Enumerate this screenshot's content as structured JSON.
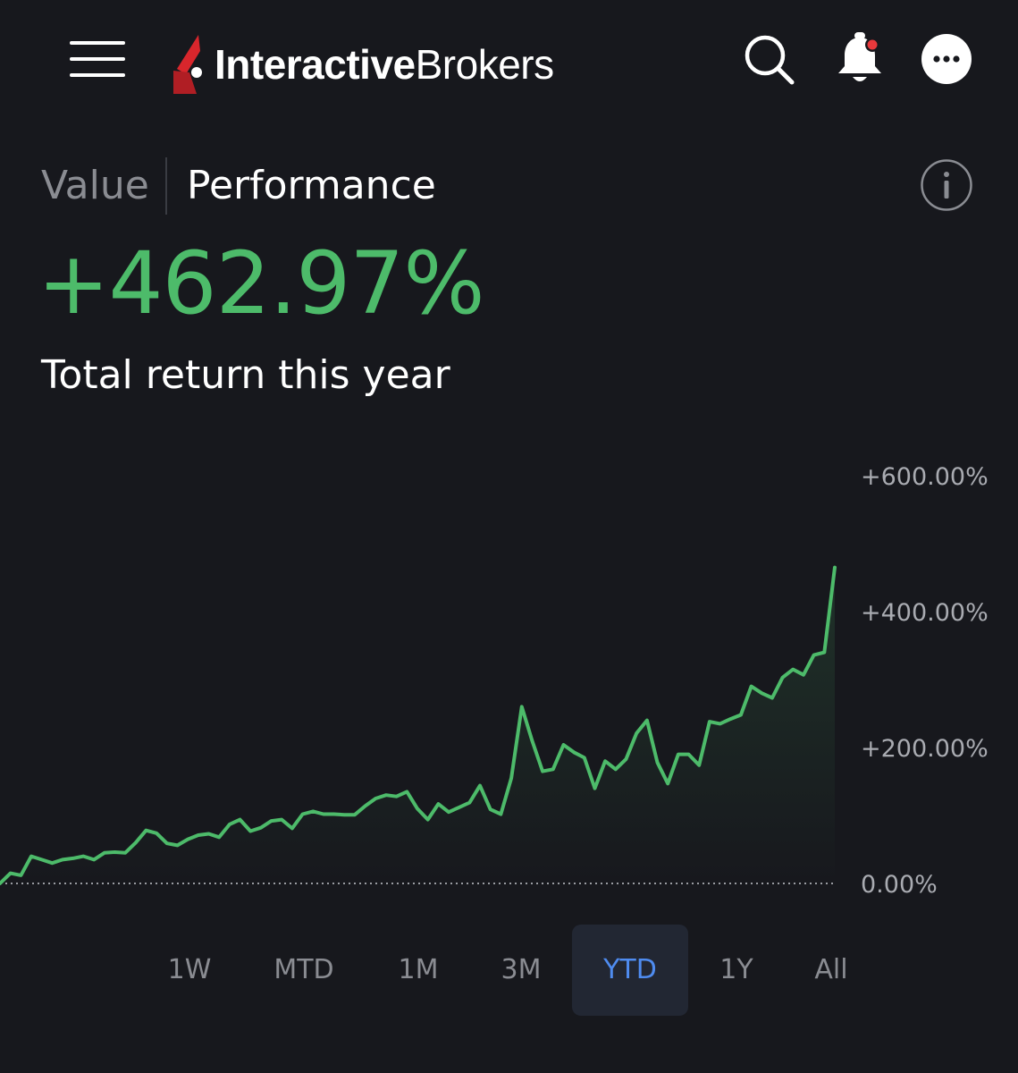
{
  "header": {
    "brand_bold": "Interactive",
    "brand_light": "Brokers",
    "icons": [
      "menu-icon",
      "search-icon",
      "bell-icon",
      "more-icon"
    ],
    "notification_dot_color": "#e8393c"
  },
  "tabs": {
    "value_label": "Value",
    "performance_label": "Performance",
    "active": "Performance"
  },
  "summary": {
    "return_value": "+462.97%",
    "return_caption": "Total return this year",
    "positive_color": "#4dbb6a"
  },
  "ranges": {
    "items": [
      "1W",
      "MTD",
      "1M",
      "3M",
      "YTD",
      "1Y",
      "All"
    ],
    "active": "YTD",
    "active_color": "#4f8cf0"
  },
  "chart_data": {
    "type": "line",
    "title": "",
    "xlabel": "",
    "ylabel": "",
    "ylim": [
      0,
      600
    ],
    "yticks": [
      0,
      200,
      400,
      600
    ],
    "ytick_labels": [
      "0.00%",
      "+200.00%",
      "+400.00%",
      "+600.00%"
    ],
    "baseline": 0,
    "line_color": "#4dbb6a",
    "grid": false,
    "series": [
      {
        "values": [
          0,
          15,
          12,
          40,
          35,
          30,
          35,
          37,
          40,
          35,
          45,
          46,
          45,
          60,
          78,
          74,
          59,
          56,
          65,
          71,
          73,
          68,
          87,
          94,
          77,
          82,
          92,
          94,
          81,
          102,
          106,
          102,
          102,
          101,
          101,
          114,
          125,
          130,
          128,
          135,
          110,
          94,
          117,
          105,
          112,
          119,
          144,
          109,
          102,
          155,
          260,
          210,
          165,
          168,
          204,
          193,
          185,
          140,
          180,
          168,
          183,
          221,
          240,
          178,
          147,
          190,
          190,
          174,
          238,
          235,
          242,
          248,
          290,
          280,
          273,
          303,
          315,
          307,
          336,
          340,
          465
        ]
      }
    ]
  }
}
